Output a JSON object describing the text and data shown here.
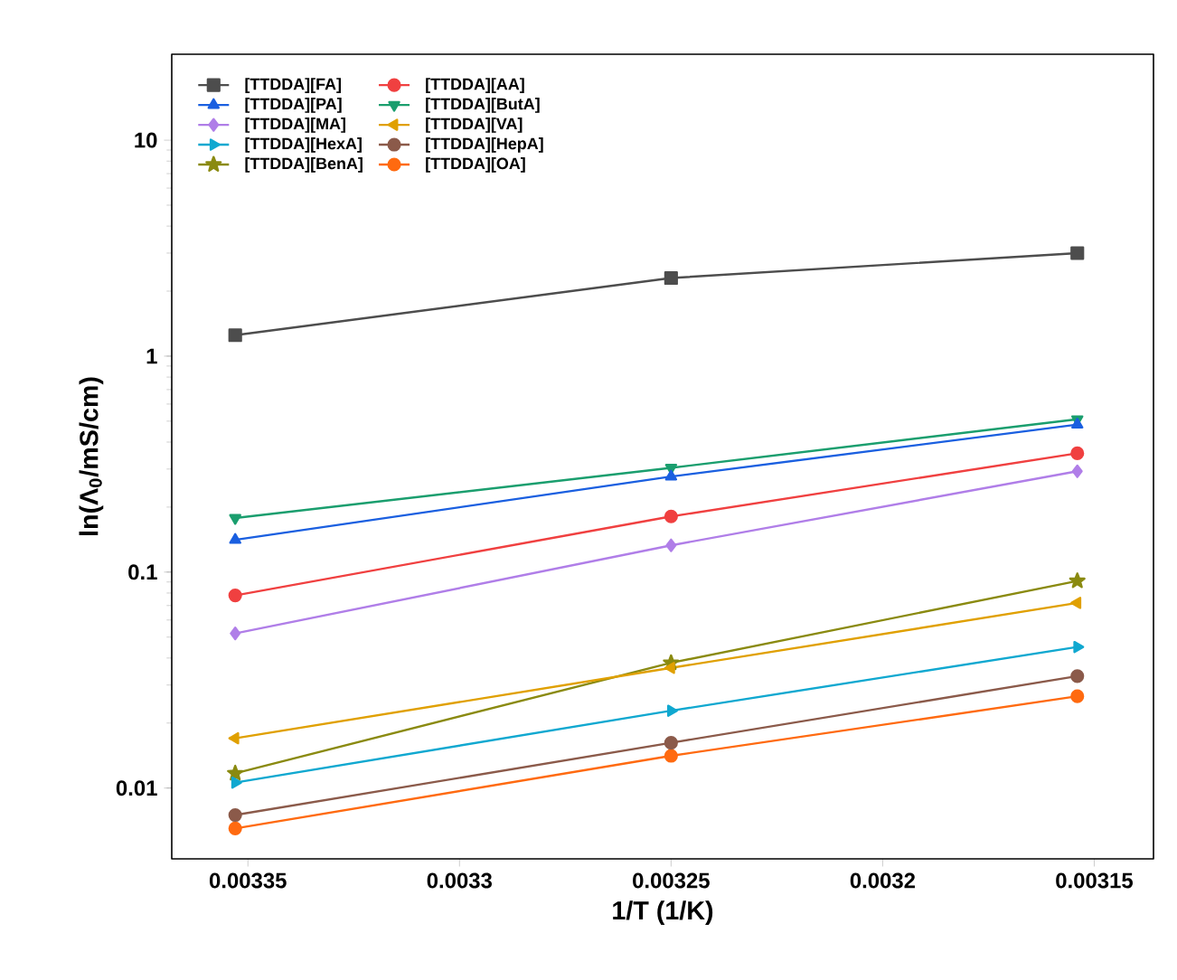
{
  "chart_data": {
    "type": "line",
    "xlabel": "1/T (1/K)",
    "ylabel": "ln(Λ$_{0}$/mS/cm)",
    "x": [
      0.003353,
      0.00325,
      0.003154
    ],
    "xlim": [
      0.003368,
      0.003136
    ],
    "xticks": [
      0.00335,
      0.0033,
      0.00325,
      0.0032,
      0.00315
    ],
    "ylim": [
      0.0047,
      25
    ],
    "yticks": [
      0.01,
      0.1,
      1,
      10
    ],
    "log": "y",
    "grid": false,
    "legend": "top left",
    "series": [
      {
        "name": "[TTDDA][FA]",
        "color": "#4d4d4d",
        "marker": "square",
        "values": [
          1.25,
          2.3,
          3.0
        ]
      },
      {
        "name": "[TTDDA][AA]",
        "color": "#f04040",
        "marker": "circle",
        "values": [
          0.078,
          0.181,
          0.355
        ]
      },
      {
        "name": "[TTDDA][PA]",
        "color": "#1a5fe0",
        "marker": "triangle",
        "values": [
          0.141,
          0.277,
          0.482
        ]
      },
      {
        "name": "[TTDDA][ButA]",
        "color": "#1a9e6e",
        "marker": "triangle down",
        "values": [
          0.178,
          0.304,
          0.51
        ]
      },
      {
        "name": "[TTDDA][MA]",
        "color": "#b07ee8",
        "marker": "diamond",
        "values": [
          0.052,
          0.133,
          0.293
        ]
      },
      {
        "name": "[TTDDA][VA]",
        "color": "#e0a000",
        "marker": "triangle left",
        "values": [
          0.017,
          0.036,
          0.072
        ]
      },
      {
        "name": "[TTDDA][HexA]",
        "color": "#10a8d0",
        "marker": "triangle right",
        "values": [
          0.0106,
          0.0228,
          0.045
        ]
      },
      {
        "name": "[TTDDA][HepA]",
        "color": "#8b5a4a",
        "marker": "circle",
        "values": [
          0.0075,
          0.0162,
          0.033
        ]
      },
      {
        "name": "[TTDDA][BenA]",
        "color": "#8a8a10",
        "marker": "star",
        "values": [
          0.0117,
          0.038,
          0.091
        ]
      },
      {
        "name": "[TTDDA][OA]",
        "color": "#ff6a10",
        "marker": "circle",
        "values": [
          0.0065,
          0.0141,
          0.0266
        ]
      }
    ]
  }
}
